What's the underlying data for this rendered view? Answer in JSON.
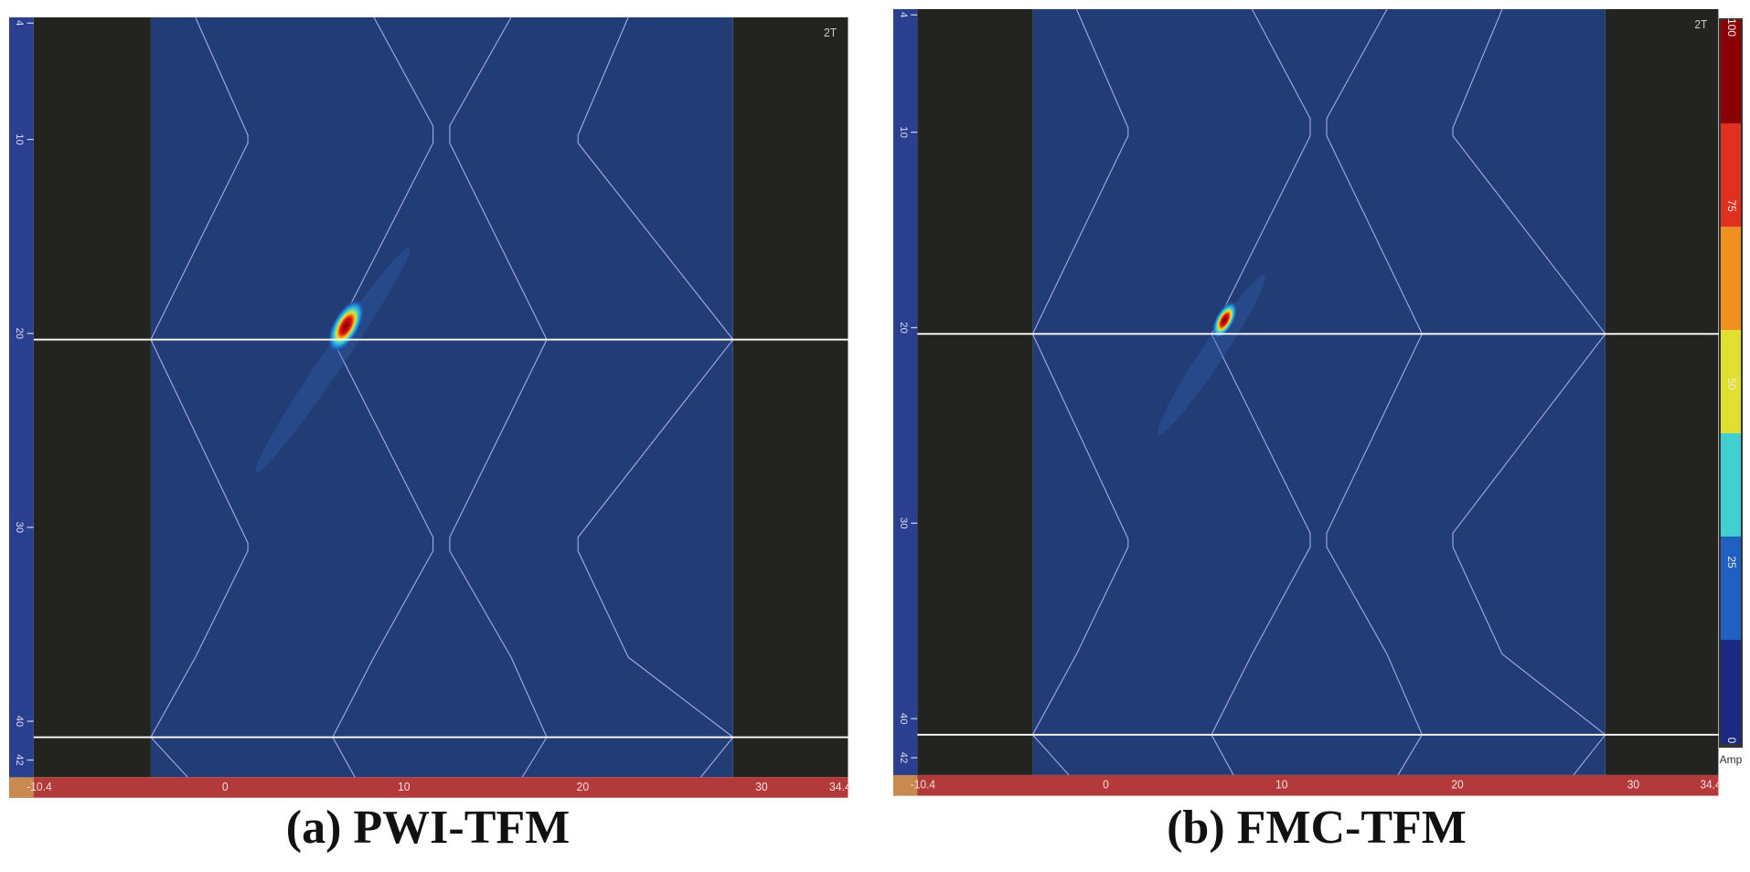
{
  "panels": [
    {
      "caption": "(a) PWI-TFM",
      "gate_label": "2T",
      "y_ticks": [
        "4",
        "10",
        "20",
        "30",
        "40",
        "42"
      ],
      "x_ticks": [
        "-10.4",
        "0",
        "10",
        "20",
        "30",
        "34.4"
      ]
    },
    {
      "caption": "(b) FMC-TFM",
      "gate_label": "2T",
      "y_ticks": [
        "4",
        "10",
        "20",
        "30",
        "40",
        "42"
      ],
      "x_ticks": [
        "-10.4",
        "0",
        "10",
        "20",
        "30",
        "34.4"
      ]
    }
  ],
  "colorbar": {
    "ticks": [
      "100",
      "75",
      "50",
      "25",
      "0"
    ],
    "label": "Amp"
  }
}
